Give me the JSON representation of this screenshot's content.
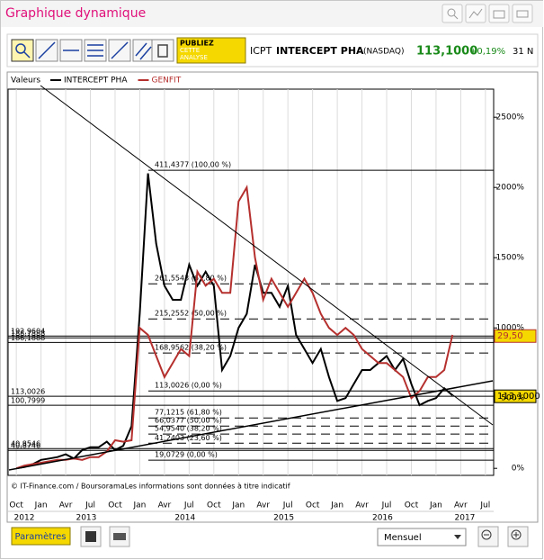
{
  "header": {
    "title": "Graphique dynamique"
  },
  "toolbar": {
    "publish": [
      "PUBLIEZ",
      "CETTE",
      "ANALYSE"
    ],
    "ticker": "ICPT",
    "name": "INTERCEPT PHA",
    "market": "(NASDAQ)",
    "price": "113,1000",
    "change": "+0,19%",
    "extra": "31 N"
  },
  "footer": {
    "copyright": "© IT-Finance.com / BoursoramaLes informations sont données à titre indicatif",
    "settings": "Paramètres",
    "period": "Mensuel"
  },
  "chart_data": {
    "type": "line",
    "legend_title": "Valeurs",
    "x": [
      "2012-10",
      "2012-11",
      "2012-12",
      "2013-01",
      "2013-02",
      "2013-03",
      "2013-04",
      "2013-05",
      "2013-06",
      "2013-07",
      "2013-08",
      "2013-09",
      "2013-10",
      "2013-11",
      "2013-12",
      "2014-01",
      "2014-02",
      "2014-03",
      "2014-04",
      "2014-05",
      "2014-06",
      "2014-07",
      "2014-08",
      "2014-09",
      "2014-10",
      "2014-11",
      "2014-12",
      "2015-01",
      "2015-02",
      "2015-03",
      "2015-04",
      "2015-05",
      "2015-06",
      "2015-07",
      "2015-08",
      "2015-09",
      "2015-10",
      "2015-11",
      "2015-12",
      "2016-01",
      "2016-02",
      "2016-03",
      "2016-04",
      "2016-05",
      "2016-06",
      "2016-07",
      "2016-08",
      "2016-09",
      "2016-10",
      "2016-11",
      "2016-12",
      "2017-01",
      "2017-02",
      "2017-03"
    ],
    "series": [
      {
        "name": "INTERCEPT PHA",
        "color": "#000000",
        "values": [
          0,
          10,
          30,
          60,
          70,
          80,
          100,
          70,
          130,
          150,
          150,
          190,
          130,
          160,
          300,
          1100,
          2100,
          1600,
          1300,
          1200,
          1200,
          1450,
          1300,
          1400,
          1300,
          700,
          800,
          1000,
          1100,
          1450,
          1250,
          1250,
          1150,
          1300,
          950,
          850,
          750,
          850,
          650,
          480,
          500,
          600,
          700,
          700,
          750,
          800,
          700,
          780,
          600,
          450,
          480,
          500,
          570,
          520
        ]
      },
      {
        "name": "GENFIT",
        "color": "#b5302e",
        "values": [
          0,
          20,
          30,
          40,
          50,
          60,
          60,
          70,
          60,
          80,
          80,
          120,
          200,
          190,
          200,
          1000,
          950,
          800,
          650,
          750,
          850,
          800,
          1400,
          1300,
          1350,
          1250,
          1250,
          1900,
          2000,
          1500,
          1200,
          1350,
          1250,
          1150,
          1250,
          1350,
          1250,
          1100,
          1000,
          950,
          1000,
          950,
          850,
          800,
          750,
          750,
          700,
          650,
          500,
          550,
          650,
          650,
          700,
          950
        ]
      }
    ],
    "xlim": [
      "2012-09",
      "2017-08"
    ],
    "xticks": [
      {
        "value": "2012-10",
        "label": "Oct"
      },
      {
        "value": "2013-01",
        "label": "Jan"
      },
      {
        "value": "2013-04",
        "label": "Avr"
      },
      {
        "value": "2013-07",
        "label": "Jul"
      },
      {
        "value": "2013-10",
        "label": "Oct"
      },
      {
        "value": "2014-01",
        "label": "Jan"
      },
      {
        "value": "2014-04",
        "label": "Avr"
      },
      {
        "value": "2014-07",
        "label": "Jul"
      },
      {
        "value": "2014-10",
        "label": "Oct"
      },
      {
        "value": "2015-01",
        "label": "Jan"
      },
      {
        "value": "2015-04",
        "label": "Avr"
      },
      {
        "value": "2015-07",
        "label": "Jul"
      },
      {
        "value": "2015-10",
        "label": "Oct"
      },
      {
        "value": "2016-01",
        "label": "Jan"
      },
      {
        "value": "2016-04",
        "label": "Avr"
      },
      {
        "value": "2016-07",
        "label": "Jul"
      },
      {
        "value": "2016-10",
        "label": "Oct"
      },
      {
        "value": "2017-01",
        "label": "Jan"
      },
      {
        "value": "2017-04",
        "label": "Avr"
      },
      {
        "value": "2017-07",
        "label": "Jul"
      }
    ],
    "years": [
      "2012",
      "2013",
      "2014",
      "2015",
      "2016",
      "2017"
    ],
    "ylim": [
      -50,
      2700
    ],
    "yticks": [
      {
        "value": 0,
        "label": "0%"
      },
      {
        "value": 500,
        "label": "500%"
      },
      {
        "value": 1000,
        "label": "1000%"
      },
      {
        "value": 1500,
        "label": "1500%"
      },
      {
        "value": 2000,
        "label": "2000%"
      },
      {
        "value": 2500,
        "label": "2500%"
      }
    ],
    "fib_levels": [
      {
        "label": "411,4377 (100,00 %)",
        "level": 2122,
        "dashed": false
      },
      {
        "label": "261,5543 (61,80 %)",
        "level": 1314,
        "dashed": true
      },
      {
        "label": "215,2552 (50,00 %)",
        "level": 1064,
        "dashed": true
      },
      {
        "label": "168,9562 (38,20 %)",
        "level": 821,
        "dashed": true
      },
      {
        "label": "113,0026 (0,00 %)",
        "level": 551,
        "dashed": false
      },
      {
        "label": "77,1215 (61,80 %)",
        "level": 359,
        "dashed": true
      },
      {
        "label": "66,0377 (50,00 %)",
        "level": 301,
        "dashed": true
      },
      {
        "label": "54,9540 (38,20 %)",
        "level": 244,
        "dashed": true
      },
      {
        "label": "41,2403 (23,60 %)",
        "level": 179,
        "dashed": true
      },
      {
        "label": "19,0729 (0,00 %)",
        "level": 58,
        "dashed": false
      }
    ],
    "price_lines": [
      {
        "label": "192,9604",
        "level": 942
      },
      {
        "label": "188,7888",
        "level": 929
      },
      {
        "label": "186,1888",
        "level": 896
      },
      {
        "label": "113,0026",
        "level": 513
      },
      {
        "label": "100,7999",
        "level": 449
      },
      {
        "label": "40,8546",
        "level": 141
      },
      {
        "label": "40,8746",
        "level": 128
      }
    ],
    "price_tags": [
      {
        "label": "29,50",
        "level": 942,
        "color": "#b5302e"
      },
      {
        "label": "113,1000",
        "level": 513,
        "color": "#000000"
      }
    ]
  }
}
